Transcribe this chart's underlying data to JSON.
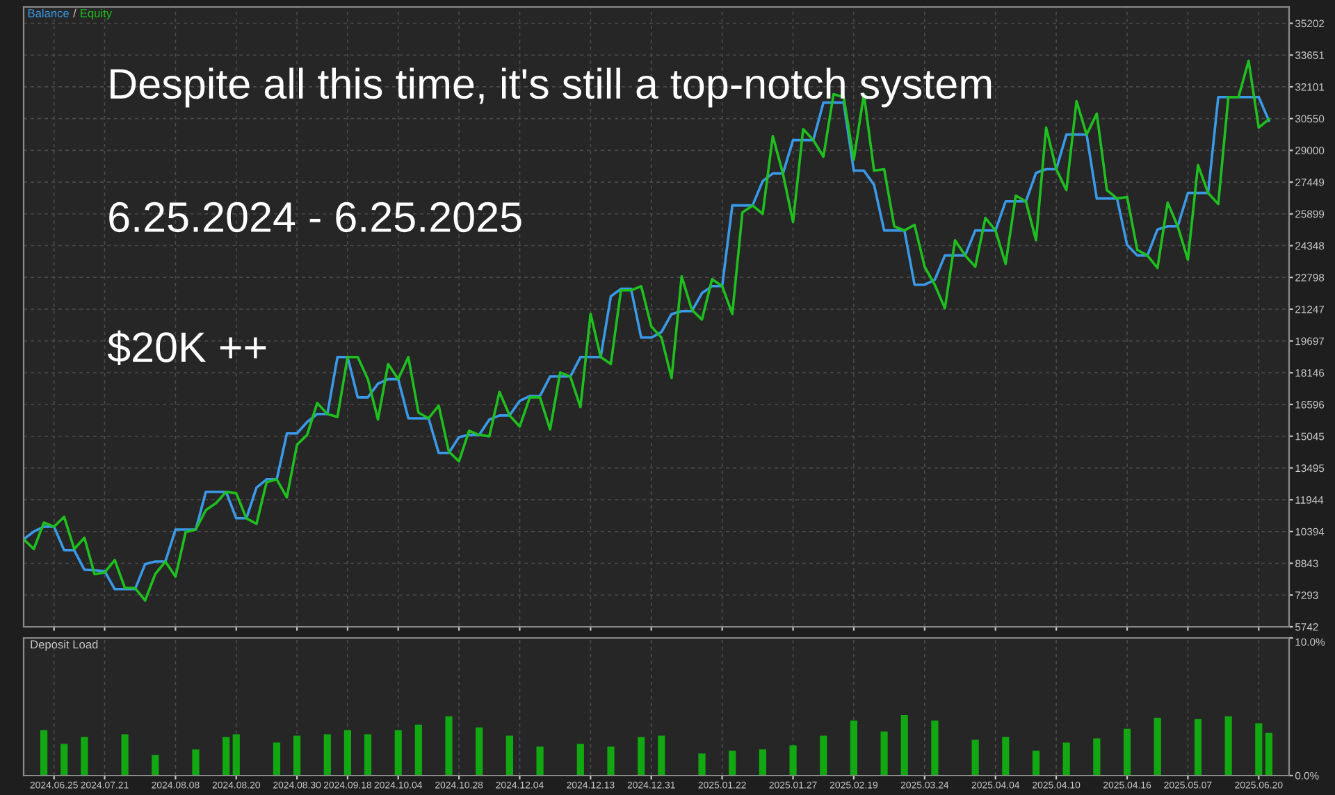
{
  "chart_data": [
    {
      "type": "line",
      "annotations": [
        "/",
        "Despite all this time, it's still a top-notch system",
        "6.25.2024 - 6.25.2025",
        "$20K ++"
      ],
      "legend": "top left",
      "grid": true,
      "tick_labels": "y",
      "categories": [
        null,
        null,
        null,
        "2024.06.25",
        null,
        null,
        null,
        null,
        "2024.07.21",
        null,
        null,
        null,
        null,
        null,
        null,
        "2024.08.08",
        null,
        null,
        null,
        null,
        null,
        "2024.08.20",
        null,
        null,
        null,
        null,
        null,
        "2024.08.30",
        null,
        null,
        null,
        null,
        "2024.09.18",
        null,
        null,
        null,
        null,
        "2024.10.04",
        null,
        null,
        null,
        null,
        null,
        "2024.10.28",
        null,
        null,
        null,
        null,
        null,
        "2024.12.04",
        null,
        null,
        null,
        null,
        null,
        null,
        "2024.12.13",
        null,
        null,
        null,
        null,
        null,
        "2024.12.31",
        null,
        null,
        null,
        null,
        null,
        null,
        "2025.01.22",
        null,
        null,
        null,
        null,
        null,
        null,
        "2025.01.27",
        null,
        null,
        null,
        null,
        null,
        "2025.02.19",
        null,
        null,
        null,
        null,
        null,
        null,
        "2025.03.24",
        null,
        null,
        null,
        null,
        null,
        null,
        "2025.04.04",
        null,
        null,
        null,
        null,
        null,
        "2025.04.10",
        null,
        null,
        null,
        null,
        null,
        null,
        "2025.04.16",
        null,
        null,
        null,
        null,
        null,
        "2025.05.07",
        null,
        null,
        null,
        null,
        null,
        null,
        "2025.06.20",
        null
      ],
      "ylim": [
        5742,
        36000
      ],
      "yticks": [
        5742,
        7293,
        8843,
        10394,
        11944,
        13495,
        15045,
        16596,
        18146,
        19697,
        21247,
        22798,
        24348,
        25899,
        27449,
        29000,
        30550,
        32101,
        33651,
        35202
      ],
      "series": [
        {
          "name": "Balance",
          "color": "#3a9ae8",
          "values": [
            10020,
            10390,
            10630,
            10630,
            9480,
            9480,
            8530,
            8500,
            8460,
            7580,
            7580,
            7580,
            8800,
            8930,
            8930,
            10490,
            10490,
            10490,
            12330,
            12330,
            12330,
            11040,
            11040,
            12540,
            12940,
            12940,
            15180,
            15180,
            15740,
            16130,
            16130,
            18910,
            18910,
            16940,
            16940,
            17610,
            17830,
            17830,
            15920,
            15920,
            15920,
            14230,
            14230,
            15000,
            15110,
            15110,
            15860,
            16060,
            16060,
            16770,
            17010,
            17010,
            17960,
            17960,
            17960,
            18910,
            18910,
            18910,
            21870,
            22240,
            22240,
            19860,
            19860,
            20130,
            21010,
            21150,
            21150,
            22030,
            22370,
            22370,
            26310,
            26310,
            26310,
            27500,
            27870,
            27870,
            29500,
            29500,
            29500,
            31330,
            31330,
            31330,
            28010,
            28010,
            27320,
            25090,
            25090,
            25090,
            22440,
            22440,
            22680,
            23870,
            23870,
            23870,
            25090,
            25090,
            25090,
            26510,
            26510,
            26510,
            27900,
            28080,
            28080,
            29770,
            29770,
            29770,
            26650,
            26650,
            26650,
            24380,
            23870,
            23870,
            25140,
            25290,
            25290,
            26920,
            26920,
            26920,
            31600,
            31600,
            31600,
            31600,
            31600,
            30450
          ]
        },
        {
          "name": "Equity",
          "color": "#1fbf1f",
          "values": [
            10020,
            9540,
            10830,
            10630,
            11110,
            9540,
            10090,
            8320,
            8390,
            9000,
            7640,
            7640,
            7030,
            8320,
            8930,
            8190,
            10360,
            10490,
            11440,
            11780,
            12330,
            12260,
            11040,
            10770,
            12800,
            12940,
            12060,
            14630,
            15110,
            16670,
            16130,
            15990,
            18910,
            18910,
            17830,
            15860,
            18570,
            17830,
            18910,
            16200,
            15920,
            16540,
            14300,
            13820,
            15310,
            15110,
            15040,
            17210,
            16060,
            15520,
            16940,
            16940,
            15380,
            18160,
            17960,
            16470,
            21020,
            18910,
            18570,
            22170,
            22170,
            22370,
            20400,
            19860,
            17890,
            22850,
            21220,
            20740,
            22710,
            22370,
            21020,
            25970,
            26310,
            25900,
            29700,
            27870,
            25500,
            30040,
            29500,
            28690,
            31740,
            31600,
            28550,
            31740,
            28010,
            28080,
            25290,
            25090,
            25360,
            23320,
            22440,
            21290,
            24610,
            23870,
            23320,
            25700,
            25090,
            23460,
            26790,
            26510,
            24610,
            30110,
            28080,
            27060,
            31400,
            29770,
            30790,
            27060,
            26650,
            26720,
            24140,
            23870,
            23260,
            26450,
            25290,
            23660,
            28280,
            26920,
            26380,
            31600,
            31600,
            33370,
            30110,
            30520
          ]
        }
      ]
    },
    {
      "type": "bar",
      "title": "Deposit Load",
      "grid": true,
      "categories": [
        null,
        null,
        null,
        "2024.06.25",
        null,
        null,
        null,
        null,
        "2024.07.21",
        null,
        null,
        null,
        null,
        null,
        null,
        "2024.08.08",
        null,
        null,
        null,
        null,
        null,
        "2024.08.20",
        null,
        null,
        null,
        null,
        null,
        "2024.08.30",
        null,
        null,
        null,
        null,
        "2024.09.18",
        null,
        null,
        null,
        null,
        "2024.10.04",
        null,
        null,
        null,
        null,
        null,
        "2024.10.28",
        null,
        null,
        null,
        null,
        null,
        "2024.12.04",
        null,
        null,
        null,
        null,
        null,
        null,
        "2024.12.13",
        null,
        null,
        null,
        null,
        null,
        "2024.12.31",
        null,
        null,
        null,
        null,
        null,
        null,
        "2025.01.22",
        null,
        null,
        null,
        null,
        null,
        null,
        "2025.01.27",
        null,
        null,
        null,
        null,
        null,
        "2025.02.19",
        null,
        null,
        null,
        null,
        null,
        null,
        "2025.03.24",
        null,
        null,
        null,
        null,
        null,
        null,
        "2025.04.04",
        null,
        null,
        null,
        null,
        null,
        "2025.04.10",
        null,
        null,
        null,
        null,
        null,
        null,
        "2025.04.16",
        null,
        null,
        null,
        null,
        null,
        "2025.05.07",
        null,
        null,
        null,
        null,
        null,
        null,
        "2025.06.20",
        null
      ],
      "ylim": [
        0,
        10
      ],
      "yticks": [
        {
          "value": 0,
          "label": "0.0%"
        },
        {
          "value": 10,
          "label": "10.0%"
        }
      ],
      "series": [
        {
          "color": "#12a812",
          "values": [
            null,
            null,
            3.3,
            null,
            2.3,
            null,
            2.8,
            null,
            null,
            null,
            3.0,
            null,
            null,
            1.5,
            null,
            null,
            null,
            1.9,
            null,
            null,
            2.8,
            3.0,
            null,
            null,
            null,
            2.4,
            null,
            2.9,
            null,
            null,
            3.0,
            null,
            3.3,
            null,
            3.0,
            null,
            null,
            3.3,
            null,
            3.7,
            null,
            null,
            4.3,
            null,
            null,
            3.5,
            null,
            null,
            2.9,
            null,
            null,
            2.1,
            null,
            null,
            null,
            2.3,
            null,
            null,
            2.1,
            null,
            null,
            2.8,
            null,
            2.9,
            null,
            null,
            null,
            1.6,
            null,
            null,
            1.8,
            null,
            null,
            1.9,
            null,
            null,
            2.2,
            null,
            null,
            2.9,
            null,
            null,
            4.0,
            null,
            null,
            3.2,
            null,
            4.4,
            null,
            null,
            4.0,
            null,
            null,
            null,
            2.6,
            null,
            null,
            2.8,
            null,
            null,
            1.8,
            null,
            null,
            2.4,
            null,
            null,
            2.7,
            null,
            null,
            3.4,
            null,
            null,
            4.2,
            null,
            null,
            null,
            4.1,
            null,
            null,
            4.3,
            null,
            null,
            3.8,
            3.1
          ]
        }
      ]
    }
  ]
}
